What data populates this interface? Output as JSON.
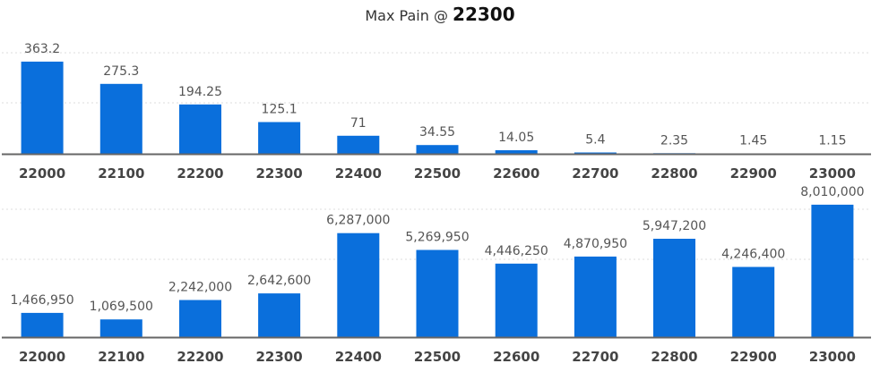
{
  "title": {
    "prefix": "Max Pain @ ",
    "strike": "22300"
  },
  "colors": {
    "bar": "#0a6fdc",
    "axis": "#666666",
    "grid": "#dddddd"
  },
  "chart_data": [
    {
      "type": "bar",
      "categories": [
        "22000",
        "22100",
        "22200",
        "22300",
        "22400",
        "22500",
        "22600",
        "22700",
        "22800",
        "22900",
        "23000"
      ],
      "values": [
        363.2,
        275.3,
        194.25,
        125.1,
        71,
        34.55,
        14.05,
        5.4,
        2.35,
        1.45,
        1.15
      ],
      "value_labels": [
        "363.2",
        "275.3",
        "194.25",
        "125.1",
        "71",
        "34.55",
        "14.05",
        "5.4",
        "2.35",
        "1.45",
        "1.15"
      ],
      "ylim": [
        0,
        500
      ],
      "grid": true
    },
    {
      "type": "bar",
      "categories": [
        "22000",
        "22100",
        "22200",
        "22300",
        "22400",
        "22500",
        "22600",
        "22700",
        "22800",
        "22900",
        "23000"
      ],
      "values": [
        1466950,
        1069500,
        2242000,
        2642600,
        6287000,
        5269950,
        4446250,
        4870950,
        5947200,
        4246400,
        8010000
      ],
      "value_labels": [
        "1,466,950",
        "1,069,500",
        "2,242,000",
        "2,642,600",
        "6,287,000",
        "5,269,950",
        "4,446,250",
        "4,870,950",
        "5,947,200",
        "4,246,400",
        "8,010,000"
      ],
      "ylim": [
        0,
        8760000
      ],
      "grid": true
    }
  ]
}
